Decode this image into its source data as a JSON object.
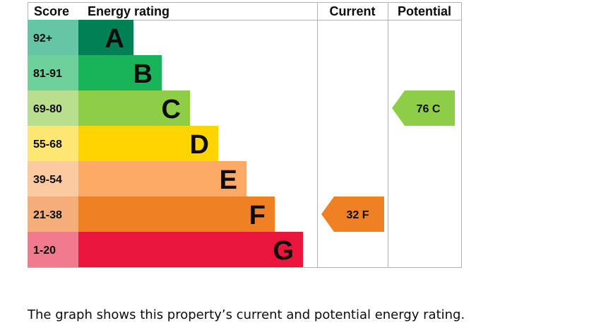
{
  "chart_data": {
    "type": "bar",
    "headers": {
      "score": "Score",
      "rating": "Energy rating",
      "current": "Current",
      "potential": "Potential"
    },
    "bands": [
      {
        "letter": "A",
        "range": "92+",
        "color": "#008054",
        "score_color": "#64c6a5"
      },
      {
        "letter": "B",
        "range": "81-91",
        "color": "#19b459",
        "score_color": "#6ed09b"
      },
      {
        "letter": "C",
        "range": "69-80",
        "color": "#8dce46",
        "score_color": "#b8de8e"
      },
      {
        "letter": "D",
        "range": "55-68",
        "color": "#ffd500",
        "score_color": "#ffe773"
      },
      {
        "letter": "E",
        "range": "39-54",
        "color": "#fcaa65",
        "score_color": "#fccaa0"
      },
      {
        "letter": "F",
        "range": "21-38",
        "color": "#ef8023",
        "score_color": "#f5ae78"
      },
      {
        "letter": "G",
        "range": "1-20",
        "color": "#e9153b",
        "score_color": "#f27a8f"
      }
    ],
    "current": {
      "value": 32,
      "band": "F",
      "label": "32 F",
      "color": "#ef8023"
    },
    "potential": {
      "value": 76,
      "band": "C",
      "label": "76 C",
      "color": "#8dce46"
    }
  },
  "caption": "The graph shows this property’s current and potential energy rating."
}
